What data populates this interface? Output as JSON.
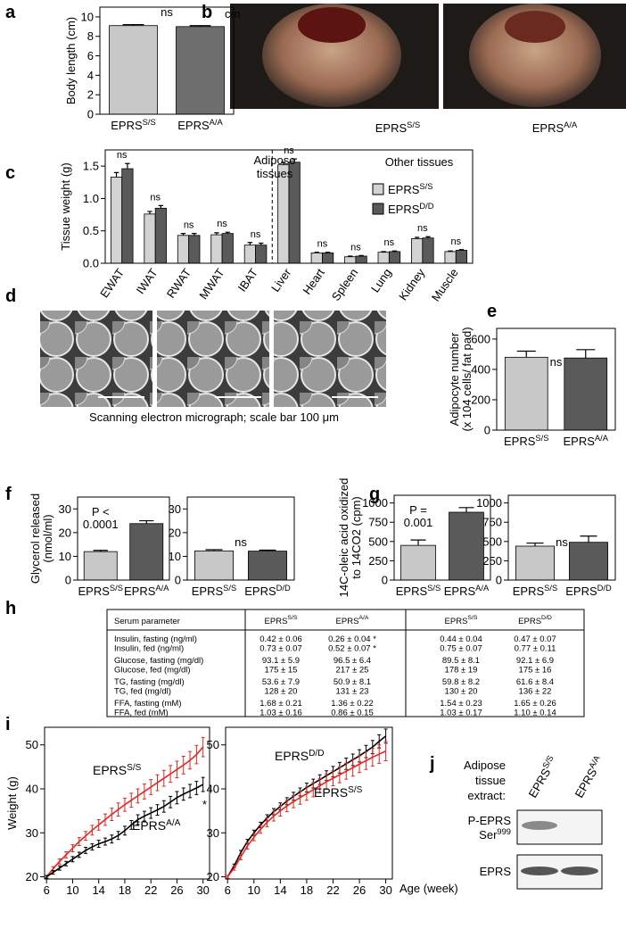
{
  "panel_labels": [
    "a",
    "b",
    "c",
    "d",
    "e",
    "f",
    "g",
    "h",
    "i",
    "j"
  ],
  "photo": {
    "unit": "cm",
    "labels": [
      "EPRSS/S",
      "EPRSA/A"
    ]
  },
  "micrograph": {
    "caption": "Scanning electron micrograph; scale bar 100 μm"
  },
  "table": {
    "header": [
      "Serum parameter",
      "EPRSS/S",
      "EPRSA/A",
      "EPRSS/S",
      "EPRSD/D"
    ],
    "rows": [
      [
        "Insulin, fasting (ng/ml)",
        "0.42 ± 0.06",
        "0.26 ± 0.04 *",
        "0.44 ± 0.04",
        "0.47 ± 0.07"
      ],
      [
        "Insulin, fed (ng/ml)",
        "0.73 ± 0.07",
        "0.52 ± 0.07 *",
        "0.75 ± 0.07",
        "0.77 ± 0.11"
      ],
      [
        "Glucose, fasting (mg/dl)",
        "93.1 ± 5.9",
        "96.5 ± 6.4",
        "89.5 ± 8.1",
        "92.1 ± 6.9"
      ],
      [
        "Glucose, fed (mg/dl)",
        "175 ± 15",
        "217 ± 25",
        "178 ± 19",
        "175 ± 16"
      ],
      [
        "TG, fasting (mg/dl)",
        "53.6 ± 7.9",
        "50.9 ± 8.1",
        "59.8 ± 8.2",
        "61.6 ± 8.4"
      ],
      [
        "TG, fed (mg/dl)",
        "128 ± 20",
        "131 ± 23",
        "130 ± 20",
        "136 ± 22"
      ],
      [
        "FFA, fasting (mM)",
        "1.68 ± 0.21",
        "1.36 ± 0.22",
        "1.54 ± 0.23",
        "1.65 ± 0.26"
      ],
      [
        "FFA, fed (mM)",
        "1.03 ± 0.16",
        "0.86 ± 0.15",
        "1.03 ± 0.17",
        "1.10 ± 0.14"
      ]
    ]
  },
  "blot": {
    "title": [
      "Adipose",
      "tissue",
      "extract:"
    ],
    "lanes": [
      "EPRSS/S",
      "EPRSA/A"
    ],
    "rows": [
      [
        "P-EPRS",
        "Ser999"
      ],
      [
        "EPRS"
      ]
    ]
  },
  "chart_data": [
    {
      "type": "bar",
      "ylabel": [
        "Body length (cm)"
      ],
      "categories": [
        "EPRSS/S",
        "EPRSA/A"
      ],
      "values": [
        9.1,
        9.0
      ],
      "errors": [
        0.1,
        0.1
      ],
      "colors": [
        "#c8c8c8",
        "#6e6e6e"
      ],
      "ylim": [
        0,
        11
      ],
      "yticks": [
        0,
        2,
        4,
        6,
        8,
        10
      ],
      "notes": [
        "ns"
      ]
    },
    {
      "type": "bar",
      "ylabel": [
        "Tissue weight (g)"
      ],
      "categories": [
        "EWAT",
        "IWAT",
        "RWAT",
        "MWAT",
        "IBAT",
        "Liver",
        "Heart",
        "Spleen",
        "Lung",
        "Kidney",
        "Muscle"
      ],
      "series": [
        {
          "name": "EPRSS/S",
          "color": "#d2d2d2",
          "values": [
            1.33,
            0.76,
            0.43,
            0.44,
            0.28,
            1.52,
            0.16,
            0.1,
            0.17,
            0.38,
            0.18
          ],
          "errors": [
            0.07,
            0.04,
            0.03,
            0.03,
            0.04,
            0.04,
            0.01,
            0.01,
            0.01,
            0.02,
            0.01
          ]
        },
        {
          "name": "EPRSD/D",
          "color": "#5a5a5a",
          "values": [
            1.46,
            0.85,
            0.43,
            0.46,
            0.28,
            1.56,
            0.16,
            0.11,
            0.18,
            0.39,
            0.2
          ],
          "errors": [
            0.08,
            0.04,
            0.03,
            0.02,
            0.03,
            0.05,
            0.01,
            0.01,
            0.01,
            0.02,
            0.01
          ]
        }
      ],
      "ylim": [
        0,
        1.75
      ],
      "yticks": [
        {
          "value": 0,
          "label": "0.0"
        },
        {
          "value": 0.5,
          "label": "0.5"
        },
        {
          "value": 1,
          "label": "1.0"
        },
        {
          "value": 1.5,
          "label": "1.5"
        }
      ],
      "bar_notes": [
        "ns",
        "ns",
        "ns",
        "ns",
        "ns",
        "ns",
        "ns",
        "ns",
        "ns",
        "ns",
        "ns"
      ],
      "group_labels": [
        "Adipose",
        "tissues",
        "Other tissues"
      ]
    },
    {
      "type": "bar",
      "ylabel": [
        "Adipocyte number",
        "(x 104 cells/ fat pad)"
      ],
      "categories": [
        "EPRSS/S",
        "EPRSA/A"
      ],
      "values": [
        480,
        475
      ],
      "errors": [
        40,
        55
      ],
      "colors": [
        "#c8c8c8",
        "#5a5a5a"
      ],
      "ylim": [
        0,
        670
      ],
      "yticks": [
        0,
        200,
        400,
        600
      ],
      "notes": [
        "ns"
      ]
    },
    {
      "type": "bar",
      "ylabel": [
        "Glycerol released",
        "(nmol/ml)"
      ],
      "categories": [
        "EPRSS/S",
        "EPRSA/A"
      ],
      "values": [
        12,
        23.8
      ],
      "errors": [
        0.5,
        1.2
      ],
      "colors": [
        "#c8c8c8",
        "#5a5a5a"
      ],
      "ylim": [
        0,
        35
      ],
      "yticks": [
        0,
        10,
        20,
        30
      ],
      "notes": [
        "P <",
        "0.0001"
      ]
    },
    {
      "type": "bar",
      "categories": [
        "EPRSS/S",
        "EPRSD/D"
      ],
      "values": [
        12.3,
        12.2
      ],
      "errors": [
        0.5,
        0.4
      ],
      "colors": [
        "#c8c8c8",
        "#5a5a5a"
      ],
      "ylim": [
        0,
        35
      ],
      "yticks": [
        0,
        10,
        20,
        30
      ],
      "notes": [
        "ns"
      ]
    },
    {
      "type": "bar",
      "ylabel": [
        "14C-oleic acid oxidized",
        "to 14CO2 (cpm)"
      ],
      "categories": [
        "EPRSS/S",
        "EPRSA/A"
      ],
      "values": [
        450,
        880
      ],
      "errors": [
        70,
        60
      ],
      "colors": [
        "#c8c8c8",
        "#5a5a5a"
      ],
      "ylim": [
        0,
        1100
      ],
      "yticks": [
        0,
        250,
        500,
        750,
        1000
      ],
      "notes": [
        "P =",
        "0.001"
      ]
    },
    {
      "type": "bar",
      "categories": [
        "EPRSS/S",
        "EPRSD/D"
      ],
      "values": [
        440,
        490
      ],
      "errors": [
        40,
        80
      ],
      "colors": [
        "#c8c8c8",
        "#5a5a5a"
      ],
      "ylim": [
        0,
        1100
      ],
      "yticks": [
        0,
        250,
        500,
        750,
        1000
      ],
      "notes": [
        "ns"
      ]
    },
    {
      "type": "line",
      "ylabel": [
        "Weight (g)"
      ],
      "x": [
        6,
        7,
        8,
        9,
        10,
        11,
        12,
        13,
        14,
        15,
        16,
        17,
        18,
        19,
        20,
        21,
        22,
        23,
        24,
        25,
        26,
        27,
        28,
        29,
        30
      ],
      "series": [
        {
          "name": "EPRSS/S",
          "color": "#e8251f",
          "values": [
            20,
            21.8,
            23.5,
            25,
            26.5,
            28,
            29.3,
            30.6,
            31.8,
            33,
            34.2,
            35.3,
            36.4,
            37.4,
            38.4,
            39.4,
            40.4,
            41.4,
            42.4,
            43.4,
            44.4,
            45.4,
            46.5,
            47.8,
            49.5
          ],
          "errors": [
            0.3,
            0.5,
            0.6,
            0.7,
            0.8,
            0.9,
            1,
            1.1,
            1.2,
            1.3,
            1.4,
            1.5,
            1.5,
            1.6,
            1.6,
            1.7,
            1.7,
            1.8,
            1.8,
            1.9,
            1.9,
            2,
            2,
            2.1,
            2.2
          ]
        },
        {
          "name": "EPRSA/A",
          "color": "#000000",
          "values": [
            20,
            21,
            22,
            23,
            24,
            25,
            26,
            26.8,
            27.5,
            28,
            28.6,
            29.4,
            30.5,
            31.8,
            33,
            33.8,
            34.5,
            35.2,
            36,
            37,
            38,
            38.8,
            39.5,
            40.2,
            41
          ],
          "errors": [
            0.3,
            0.4,
            0.5,
            0.5,
            0.6,
            0.6,
            0.7,
            0.7,
            0.8,
            0.8,
            0.9,
            0.9,
            1,
            1,
            1.1,
            1.1,
            1.2,
            1.2,
            1.3,
            1.3,
            1.4,
            1.4,
            1.5,
            1.5,
            1.6
          ]
        }
      ],
      "xlim": [
        5.7,
        31
      ],
      "ylim": [
        19.5,
        54
      ],
      "xticks": [
        6,
        10,
        14,
        18,
        22,
        26,
        30
      ],
      "yticks": [
        20,
        30,
        40,
        50
      ],
      "notes": [
        "*"
      ]
    },
    {
      "type": "line",
      "xlabel": "Age (week)",
      "x": [
        6,
        7,
        8,
        9,
        10,
        11,
        12,
        13,
        14,
        15,
        16,
        17,
        18,
        19,
        20,
        21,
        22,
        23,
        24,
        25,
        26,
        27,
        28,
        29,
        30
      ],
      "series": [
        {
          "name": "EPRSD/D",
          "color": "#000000",
          "values": [
            20,
            22.5,
            25.5,
            28,
            30,
            31.8,
            33.4,
            34.8,
            36,
            37.2,
            38.3,
            39.3,
            40.3,
            41.2,
            42.1,
            43,
            43.9,
            44.8,
            45.7,
            46.6,
            47.5,
            48.5,
            49.5,
            50.8,
            52
          ],
          "errors": [
            0.3,
            0.4,
            0.5,
            0.5,
            0.6,
            0.6,
            0.7,
            0.7,
            0.8,
            0.8,
            0.9,
            0.9,
            1,
            1,
            1.1,
            1.1,
            1.2,
            1.2,
            1.3,
            1.3,
            1.4,
            1.4,
            1.5,
            1.5,
            1.6
          ]
        },
        {
          "name": "EPRSS/S",
          "color": "#e8251f",
          "values": [
            20,
            22,
            24.5,
            27,
            29,
            30.8,
            32.4,
            33.8,
            35,
            36.1,
            37.1,
            38,
            38.9,
            39.8,
            40.7,
            41.6,
            42.4,
            43.2,
            44,
            44.8,
            45.6,
            46.4,
            47.2,
            47.9,
            48.6
          ],
          "errors": [
            0.3,
            0.5,
            0.6,
            0.7,
            0.8,
            0.9,
            1,
            1.1,
            1.2,
            1.3,
            1.4,
            1.5,
            1.5,
            1.6,
            1.6,
            1.7,
            1.7,
            1.8,
            1.8,
            1.9,
            1.9,
            2,
            2,
            2.1,
            2.2
          ]
        }
      ],
      "xlim": [
        5.7,
        31
      ],
      "ylim": [
        19.5,
        54
      ],
      "xticks": [
        6,
        10,
        14,
        18,
        22,
        26,
        30
      ],
      "yticks": [
        20,
        30,
        40,
        50
      ]
    }
  ]
}
